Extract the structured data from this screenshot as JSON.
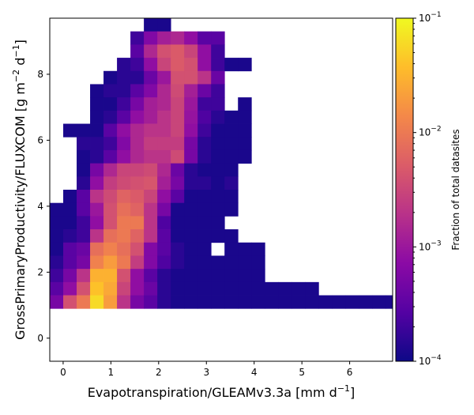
{
  "chart_data": {
    "type": "heatmap",
    "title": "",
    "xlabel": {
      "main": "Evapotranspiration/GLEAMv3.3a [mm d",
      "sup": "−1",
      "end": "]"
    },
    "ylabel": {
      "a": "GrossPrimaryProductivity/FLUXCOM [g m",
      "sup1": "−2",
      "b": " d",
      "sup2": "−1",
      "c": "]"
    },
    "x_ticks": [
      "0",
      "1",
      "2",
      "3",
      "4",
      "5",
      "6"
    ],
    "x_tick_values": [
      0,
      1,
      2,
      3,
      4,
      5,
      6
    ],
    "y_ticks": [
      "0",
      "2",
      "4",
      "6",
      "8"
    ],
    "y_tick_values": [
      0,
      2,
      4,
      6,
      8
    ],
    "xlim": [
      -0.28,
      6.9
    ],
    "ylim": [
      -0.7,
      9.7
    ],
    "x_bin_start": -0.28,
    "x_bin_width": 0.2815,
    "y_bin_start": -0.7,
    "y_bin_width": 0.4,
    "colorscale": "plasma",
    "log_scale": true,
    "vmin": 0.0001,
    "vmax": 0.1,
    "colorbar": {
      "label": "Fraction of total datasites",
      "ticks": [
        {
          "base": "10",
          "exp": "−1",
          "value": 0.1
        },
        {
          "base": "10",
          "exp": "−2",
          "value": 0.01
        },
        {
          "base": "10",
          "exp": "−3",
          "value": 0.001
        },
        {
          "base": "10",
          "exp": "−4",
          "value": 0.0001
        }
      ]
    },
    "rows": [
      {
        "y0": 9.3,
        "cells": [
          [
            7,
            0.00012
          ],
          [
            8,
            0.00012
          ]
        ]
      },
      {
        "y0": 8.9,
        "cells": [
          [
            6,
            0.0002
          ],
          [
            7,
            0.0006
          ],
          [
            8,
            0.0012
          ],
          [
            9,
            0.0015
          ],
          [
            10,
            0.0008
          ],
          [
            11,
            0.0003
          ],
          [
            12,
            0.0003
          ]
        ]
      },
      {
        "y0": 8.5,
        "cells": [
          [
            6,
            0.0003
          ],
          [
            7,
            0.0015
          ],
          [
            8,
            0.004
          ],
          [
            9,
            0.005
          ],
          [
            10,
            0.003
          ],
          [
            11,
            0.0008
          ],
          [
            12,
            0.0002
          ]
        ]
      },
      {
        "y0": 8.1,
        "cells": [
          [
            5,
            0.00015
          ],
          [
            6,
            0.0002
          ],
          [
            7,
            0.0008
          ],
          [
            8,
            0.003
          ],
          [
            9,
            0.005
          ],
          [
            10,
            0.004
          ],
          [
            11,
            0.0008
          ],
          [
            12,
            0.0002
          ],
          [
            13,
            0.00012
          ],
          [
            14,
            0.00012
          ]
        ]
      },
      {
        "y0": 7.7,
        "cells": [
          [
            4,
            0.00012
          ],
          [
            5,
            0.00015
          ],
          [
            6,
            0.00015
          ],
          [
            7,
            0.0004
          ],
          [
            8,
            0.001
          ],
          [
            9,
            0.004
          ],
          [
            10,
            0.004
          ],
          [
            11,
            0.002
          ],
          [
            12,
            0.0004
          ]
        ]
      },
      {
        "y0": 7.3,
        "cells": [
          [
            3,
            0.00012
          ],
          [
            4,
            0.00015
          ],
          [
            5,
            0.00015
          ],
          [
            6,
            0.0003
          ],
          [
            7,
            0.0006
          ],
          [
            8,
            0.0015
          ],
          [
            9,
            0.0035
          ],
          [
            10,
            0.0012
          ],
          [
            11,
            0.0004
          ],
          [
            12,
            0.0002
          ]
        ]
      },
      {
        "y0": 6.9,
        "cells": [
          [
            3,
            0.00012
          ],
          [
            4,
            0.00012
          ],
          [
            5,
            0.0002
          ],
          [
            6,
            0.0005
          ],
          [
            7,
            0.0012
          ],
          [
            8,
            0.0015
          ],
          [
            9,
            0.003
          ],
          [
            10,
            0.001
          ],
          [
            11,
            0.0002
          ],
          [
            12,
            0.0002
          ],
          [
            14,
            0.00012
          ]
        ]
      },
      {
        "y0": 6.5,
        "cells": [
          [
            3,
            0.00012
          ],
          [
            4,
            0.00015
          ],
          [
            5,
            0.0003
          ],
          [
            6,
            0.0008
          ],
          [
            7,
            0.0012
          ],
          [
            8,
            0.002
          ],
          [
            9,
            0.003
          ],
          [
            10,
            0.0009
          ],
          [
            11,
            0.00025
          ],
          [
            12,
            0.00015
          ],
          [
            13,
            0.00012
          ],
          [
            14,
            0.00012
          ]
        ]
      },
      {
        "y0": 6.1,
        "cells": [
          [
            1,
            0.00012
          ],
          [
            2,
            0.00012
          ],
          [
            3,
            0.00012
          ],
          [
            4,
            0.0003
          ],
          [
            5,
            0.0008
          ],
          [
            6,
            0.0015
          ],
          [
            7,
            0.002
          ],
          [
            8,
            0.002
          ],
          [
            9,
            0.003
          ],
          [
            10,
            0.0008
          ],
          [
            11,
            0.0002
          ],
          [
            12,
            0.00012
          ],
          [
            13,
            0.00012
          ],
          [
            14,
            0.00012
          ]
        ]
      },
      {
        "y0": 5.7,
        "cells": [
          [
            2,
            0.00015
          ],
          [
            3,
            0.00015
          ],
          [
            4,
            0.0002
          ],
          [
            5,
            0.0006
          ],
          [
            6,
            0.0015
          ],
          [
            7,
            0.0025
          ],
          [
            8,
            0.0025
          ],
          [
            9,
            0.0025
          ],
          [
            10,
            0.0005
          ],
          [
            11,
            0.00015
          ],
          [
            12,
            0.00012
          ],
          [
            13,
            0.00012
          ],
          [
            14,
            0.00012
          ]
        ]
      },
      {
        "y0": 5.3,
        "cells": [
          [
            2,
            0.00012
          ],
          [
            3,
            0.00015
          ],
          [
            4,
            0.0003
          ],
          [
            5,
            0.0008
          ],
          [
            6,
            0.0015
          ],
          [
            7,
            0.002
          ],
          [
            8,
            0.002
          ],
          [
            9,
            0.0035
          ],
          [
            10,
            0.0005
          ],
          [
            11,
            0.00015
          ],
          [
            12,
            0.00012
          ],
          [
            13,
            0.00012
          ],
          [
            14,
            0.00012
          ]
        ]
      },
      {
        "y0": 4.9,
        "cells": [
          [
            2,
            0.00012
          ],
          [
            3,
            0.0005
          ],
          [
            4,
            0.0015
          ],
          [
            5,
            0.003
          ],
          [
            6,
            0.003
          ],
          [
            7,
            0.0035
          ],
          [
            8,
            0.0015
          ],
          [
            9,
            0.0004
          ],
          [
            10,
            0.00015
          ],
          [
            11,
            0.00012
          ],
          [
            12,
            0.00012
          ],
          [
            13,
            0.00012
          ]
        ]
      },
      {
        "y0": 4.5,
        "cells": [
          [
            2,
            0.00015
          ],
          [
            3,
            0.0008
          ],
          [
            4,
            0.0025
          ],
          [
            5,
            0.0035
          ],
          [
            6,
            0.004
          ],
          [
            7,
            0.0045
          ],
          [
            8,
            0.0012
          ],
          [
            9,
            0.0005
          ],
          [
            10,
            0.00015
          ],
          [
            11,
            0.00015
          ],
          [
            12,
            0.00012
          ],
          [
            13,
            0.00015
          ]
        ]
      },
      {
        "y0": 4.1,
        "cells": [
          [
            1,
            0.00012
          ],
          [
            2,
            0.0003
          ],
          [
            3,
            0.002
          ],
          [
            4,
            0.0035
          ],
          [
            5,
            0.006
          ],
          [
            6,
            0.005
          ],
          [
            7,
            0.003
          ],
          [
            8,
            0.0008
          ],
          [
            9,
            0.0003
          ],
          [
            10,
            0.00012
          ],
          [
            11,
            0.00012
          ],
          [
            12,
            0.00012
          ],
          [
            13,
            0.00012
          ]
        ]
      },
      {
        "y0": 3.7,
        "cells": [
          [
            0,
            0.00012
          ],
          [
            1,
            0.00012
          ],
          [
            2,
            0.0003
          ],
          [
            3,
            0.001
          ],
          [
            4,
            0.004
          ],
          [
            5,
            0.008
          ],
          [
            6,
            0.006
          ],
          [
            7,
            0.002
          ],
          [
            8,
            0.0005
          ],
          [
            9,
            0.00012
          ],
          [
            10,
            0.00012
          ],
          [
            11,
            0.00012
          ],
          [
            12,
            0.00012
          ],
          [
            13,
            0.00012
          ]
        ]
      },
      {
        "y0": 3.3,
        "cells": [
          [
            0,
            0.00012
          ],
          [
            1,
            0.00012
          ],
          [
            2,
            0.0002
          ],
          [
            3,
            0.0008
          ],
          [
            4,
            0.004
          ],
          [
            5,
            0.01
          ],
          [
            6,
            0.01
          ],
          [
            7,
            0.002
          ],
          [
            8,
            0.00025
          ],
          [
            9,
            0.00012
          ],
          [
            10,
            0.00012
          ],
          [
            11,
            0.00012
          ],
          [
            12,
            0.00012
          ]
        ]
      },
      {
        "y0": 2.9,
        "cells": [
          [
            0,
            0.00012
          ],
          [
            1,
            0.00015
          ],
          [
            2,
            0.0002
          ],
          [
            3,
            0.002
          ],
          [
            4,
            0.008
          ],
          [
            5,
            0.01
          ],
          [
            6,
            0.006
          ],
          [
            7,
            0.002
          ],
          [
            8,
            0.0003
          ],
          [
            9,
            0.00012
          ],
          [
            10,
            0.00012
          ],
          [
            11,
            0.00012
          ],
          [
            12,
            0.00012
          ],
          [
            13,
            0.00012
          ]
        ]
      },
      {
        "y0": 2.5,
        "cells": [
          [
            0,
            0.00012
          ],
          [
            1,
            0.0003
          ],
          [
            2,
            0.0004
          ],
          [
            3,
            0.008
          ],
          [
            4,
            0.012
          ],
          [
            5,
            0.008
          ],
          [
            6,
            0.004
          ],
          [
            7,
            0.0006
          ],
          [
            8,
            0.0003
          ],
          [
            9,
            0.00015
          ],
          [
            10,
            0.00012
          ],
          [
            11,
            0.00012
          ],
          [
            13,
            0.00012
          ],
          [
            14,
            0.00012
          ],
          [
            15,
            0.00012
          ]
        ]
      },
      {
        "y0": 2.1,
        "cells": [
          [
            0,
            0.00015
          ],
          [
            1,
            0.0003
          ],
          [
            2,
            0.0005
          ],
          [
            3,
            0.012
          ],
          [
            4,
            0.02
          ],
          [
            5,
            0.01
          ],
          [
            6,
            0.0025
          ],
          [
            7,
            0.0006
          ],
          [
            8,
            0.00025
          ],
          [
            9,
            0.00015
          ],
          [
            10,
            0.00012
          ],
          [
            11,
            0.00012
          ],
          [
            12,
            0.00012
          ],
          [
            13,
            0.00012
          ],
          [
            14,
            0.00012
          ],
          [
            15,
            0.00012
          ]
        ]
      },
      {
        "y0": 1.7,
        "cells": [
          [
            0,
            0.0002
          ],
          [
            1,
            0.0005
          ],
          [
            2,
            0.002
          ],
          [
            3,
            0.03
          ],
          [
            4,
            0.03
          ],
          [
            5,
            0.004
          ],
          [
            6,
            0.0008
          ],
          [
            7,
            0.0003
          ],
          [
            8,
            0.00015
          ],
          [
            9,
            0.00012
          ],
          [
            10,
            0.00012
          ],
          [
            11,
            0.00012
          ],
          [
            12,
            0.00012
          ],
          [
            13,
            0.00012
          ],
          [
            14,
            0.00012
          ],
          [
            15,
            0.00012
          ]
        ]
      },
      {
        "y0": 1.3,
        "cells": [
          [
            0,
            0.0003
          ],
          [
            1,
            0.0008
          ],
          [
            2,
            0.004
          ],
          [
            3,
            0.04
          ],
          [
            4,
            0.025
          ],
          [
            5,
            0.003
          ],
          [
            6,
            0.0008
          ],
          [
            7,
            0.0004
          ],
          [
            8,
            0.00015
          ],
          [
            9,
            0.00012
          ],
          [
            10,
            0.00012
          ],
          [
            11,
            0.00012
          ],
          [
            12,
            0.00012
          ],
          [
            13,
            0.00012
          ],
          [
            14,
            0.00012
          ],
          [
            15,
            0.00012
          ],
          [
            16,
            0.00012
          ],
          [
            17,
            0.00012
          ],
          [
            18,
            0.00012
          ],
          [
            19,
            0.00012
          ]
        ]
      },
      {
        "y0": 0.9,
        "cells": [
          [
            0,
            0.0005
          ],
          [
            1,
            0.004
          ],
          [
            2,
            0.01
          ],
          [
            3,
            0.06
          ],
          [
            4,
            0.02
          ],
          [
            5,
            0.002
          ],
          [
            6,
            0.0005
          ],
          [
            7,
            0.0003
          ],
          [
            8,
            0.00015
          ],
          [
            9,
            0.00012
          ],
          [
            10,
            0.00012
          ],
          [
            11,
            0.00012
          ],
          [
            12,
            0.00012
          ],
          [
            13,
            0.00012
          ],
          [
            14,
            0.00012
          ],
          [
            15,
            0.00012
          ],
          [
            16,
            0.00012
          ],
          [
            17,
            0.00012
          ],
          [
            18,
            0.00012
          ],
          [
            19,
            0.00012
          ],
          [
            20,
            0.00012
          ],
          [
            21,
            0.00012
          ],
          [
            22,
            0.00012
          ],
          [
            23,
            0.00012
          ],
          [
            24,
            0.00012
          ],
          [
            25,
            0.00012
          ],
          [
            26,
            0.00012
          ],
          [
            27,
            0.00012
          ],
          [
            28,
            0.00012
          ]
        ]
      }
    ]
  }
}
